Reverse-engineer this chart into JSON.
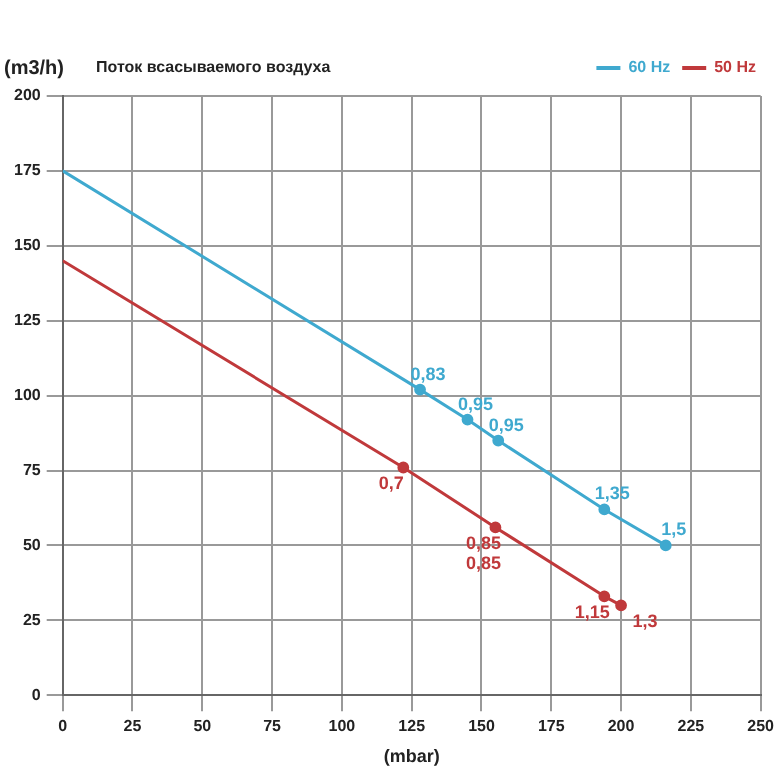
{
  "chart_data": {
    "type": "line",
    "title": "Поток всасываемого воздуха",
    "ylabel": "(m3/h)",
    "xlabel": "(mbar)",
    "xlim": [
      0,
      250
    ],
    "xticks": [
      0,
      25,
      50,
      75,
      100,
      125,
      150,
      175,
      200,
      225,
      250
    ],
    "ylim": [
      0,
      200
    ],
    "yticks": [
      0,
      25,
      50,
      75,
      100,
      125,
      150,
      175,
      200
    ],
    "grid": true,
    "legend": "top right",
    "marker": "circle",
    "series": [
      {
        "name": "60 Hz",
        "color": "#3fa9cf",
        "x": [
          0,
          128,
          145,
          156,
          194,
          216
        ],
        "values": [
          175,
          102,
          92,
          85,
          62,
          50
        ]
      },
      {
        "name": "50 Hz",
        "color": "#c0393b",
        "x": [
          0,
          122,
          155,
          194,
          200
        ],
        "values": [
          145,
          76,
          56,
          33,
          30
        ]
      }
    ],
    "annotations": [
      {
        "text": "0,83",
        "x": 128,
        "y": 102
      },
      {
        "text": "0,95",
        "x": 145,
        "y": 92
      },
      {
        "text": "0,95",
        "x": 156,
        "y": 85
      },
      {
        "text": "1,35",
        "x": 194,
        "y": 62
      },
      {
        "text": "1,5",
        "x": 216,
        "y": 50
      },
      {
        "text": "0,7",
        "x": 122,
        "y": 76
      },
      {
        "text": "0,85",
        "x": 155,
        "y": 56
      },
      {
        "text": "0,85",
        "x": 155,
        "y": 56
      },
      {
        "text": "1,15",
        "x": 194,
        "y": 33
      },
      {
        "text": "1,3",
        "x": 200,
        "y": 30
      }
    ]
  }
}
